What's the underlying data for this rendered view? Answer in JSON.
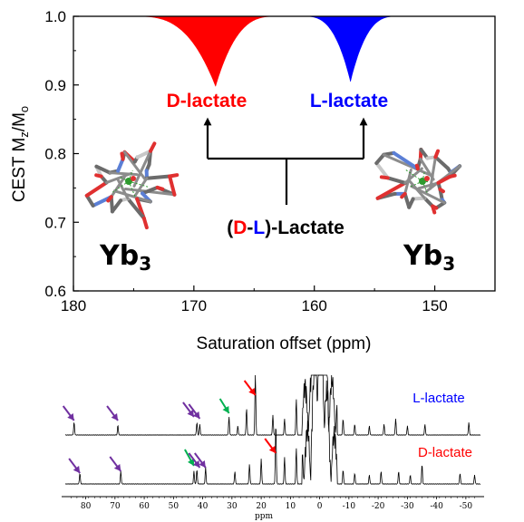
{
  "colors": {
    "d_lactate": "#ff0000",
    "l_lactate": "#0000ff",
    "purple_arrow": "#7030a0",
    "green_arrow": "#00b050",
    "red_arrow": "#ff0000",
    "black": "#000000"
  },
  "chart_data": [
    {
      "type": "area",
      "xlabel": "Saturation offset (ppm)",
      "ylabel": {
        "main": "CEST M",
        "sub1": "z",
        "sep": "/M",
        "sub2": "o"
      },
      "xlim": [
        180,
        145
      ],
      "ylim": [
        0.6,
        1.0
      ],
      "x_reversed": true,
      "xticks": [
        180,
        170,
        160,
        150
      ],
      "yticks": [
        0.6,
        0.7,
        0.8,
        0.9,
        1.0
      ],
      "ytick_labels": [
        "0.6",
        "0.7",
        "0.8",
        "0.9",
        "1.0"
      ],
      "grid": false,
      "series": [
        {
          "name": "D-lactate",
          "color": "#ff0000",
          "center": 168.2,
          "min": 0.898,
          "onset_left": 175,
          "onset_right": 163
        },
        {
          "name": "L-lactate",
          "color": "#0000ff",
          "center": 157.0,
          "min": 0.905,
          "onset_left": 161,
          "onset_right": 153
        }
      ],
      "annotations": {
        "d_label": "D-lactate",
        "l_label": "L-lactate",
        "mix_open": "(",
        "mix_d": "D",
        "mix_dash": "-",
        "mix_l": "L",
        "mix_close": ")-Lactate",
        "complex_base": "Yb",
        "complex_sub": "3"
      }
    },
    {
      "type": "line",
      "xlabel": "ppm",
      "xlim": [
        87,
        -55
      ],
      "x_reversed": true,
      "xticks": [
        80,
        70,
        60,
        50,
        40,
        30,
        20,
        10,
        0,
        -10,
        -20,
        -30,
        -40,
        -50
      ],
      "series": [
        {
          "name": "L-lactate",
          "label_color": "#0000ff",
          "peaks": [
            [
              84,
              14
            ],
            [
              69,
              11
            ],
            [
              42,
              14
            ],
            [
              41,
              12
            ],
            [
              31,
              20
            ],
            [
              28,
              10
            ],
            [
              25,
              30
            ],
            [
              22,
              68
            ],
            [
              16,
              22
            ],
            [
              12,
              18
            ],
            [
              8,
              40
            ],
            [
              -8,
              18
            ],
            [
              -12,
              12
            ],
            [
              -17,
              10
            ],
            [
              -22,
              12
            ],
            [
              -26,
              18
            ],
            [
              -30,
              10
            ],
            [
              -36,
              12
            ],
            [
              -51,
              14
            ]
          ]
        },
        {
          "name": "D-lactate",
          "label_color": "#ff0000",
          "peaks": [
            [
              82,
              12
            ],
            [
              68,
              14
            ],
            [
              43,
              14
            ],
            [
              42,
              16
            ],
            [
              39,
              18
            ],
            [
              29,
              14
            ],
            [
              24,
              22
            ],
            [
              20,
              28
            ],
            [
              15,
              68
            ],
            [
              12,
              30
            ],
            [
              8,
              40
            ],
            [
              -8,
              16
            ],
            [
              -12,
              12
            ],
            [
              -17,
              10
            ],
            [
              -21,
              14
            ],
            [
              -27,
              14
            ],
            [
              -31,
              10
            ],
            [
              -35,
              22
            ],
            [
              -48,
              12
            ],
            [
              -53,
              10
            ]
          ]
        }
      ]
    }
  ]
}
